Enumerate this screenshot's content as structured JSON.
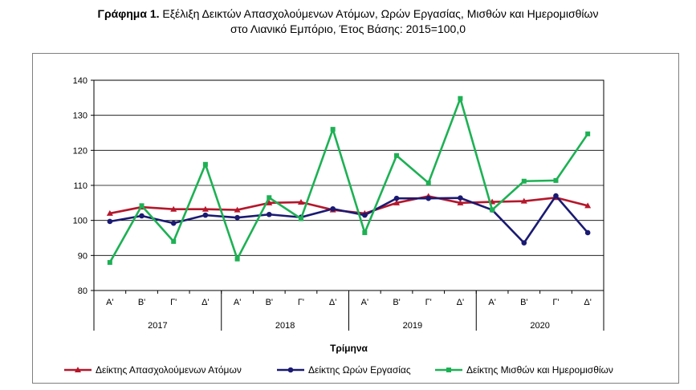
{
  "title": {
    "bold": "Γράφημα 1.",
    "line1": "Εξέλιξη Δεικτών Απασχολούμενων Ατόμων, Ωρών Εργασίας, Μισθών και Ημερομισθίων",
    "line2": "στο Λιανικό Εμπόριο, Έτος Βάσης: 2015=100,0"
  },
  "chart_data": {
    "type": "line",
    "xlabel": "Τρίμηνα",
    "ylabel": "",
    "ylim": [
      80,
      140
    ],
    "yticks": [
      80,
      90,
      100,
      110,
      120,
      130,
      140
    ],
    "categories": [
      "Α'",
      "Β'",
      "Γ'",
      "Δ'",
      "Α'",
      "Β'",
      "Γ'",
      "Δ'",
      "Α'",
      "Β'",
      "Γ'",
      "Δ'",
      "Α'",
      "Β'",
      "Γ'",
      "Δ'"
    ],
    "groups": [
      "2017",
      "2018",
      "2019",
      "2020"
    ],
    "grid": true,
    "legend": "bottom",
    "series": [
      {
        "name": "Δείκτης Απασχολούμενων Ατόμων",
        "color": "#b5172b",
        "marker": "triangle",
        "values": [
          102.0,
          103.8,
          103.2,
          103.2,
          103.0,
          105.0,
          105.2,
          103.0,
          102.0,
          105.0,
          106.9,
          105.0,
          105.3,
          105.5,
          106.5,
          104.2
        ]
      },
      {
        "name": "Δείκτης Ωρών Εργασίας",
        "color": "#1a1a72",
        "marker": "circle",
        "values": [
          99.7,
          101.3,
          99.2,
          101.5,
          100.8,
          101.7,
          100.9,
          103.3,
          101.5,
          106.3,
          106.3,
          106.4,
          103.0,
          93.6,
          107.0,
          96.5
        ]
      },
      {
        "name": "Δείκτης Μισθών και Ημερομισθίων",
        "color": "#1db154",
        "marker": "square",
        "values": [
          88.0,
          104.2,
          94.0,
          116.0,
          89.0,
          106.5,
          100.5,
          126.0,
          96.5,
          118.5,
          110.7,
          134.8,
          103.0,
          111.2,
          111.4,
          124.7
        ]
      }
    ]
  }
}
